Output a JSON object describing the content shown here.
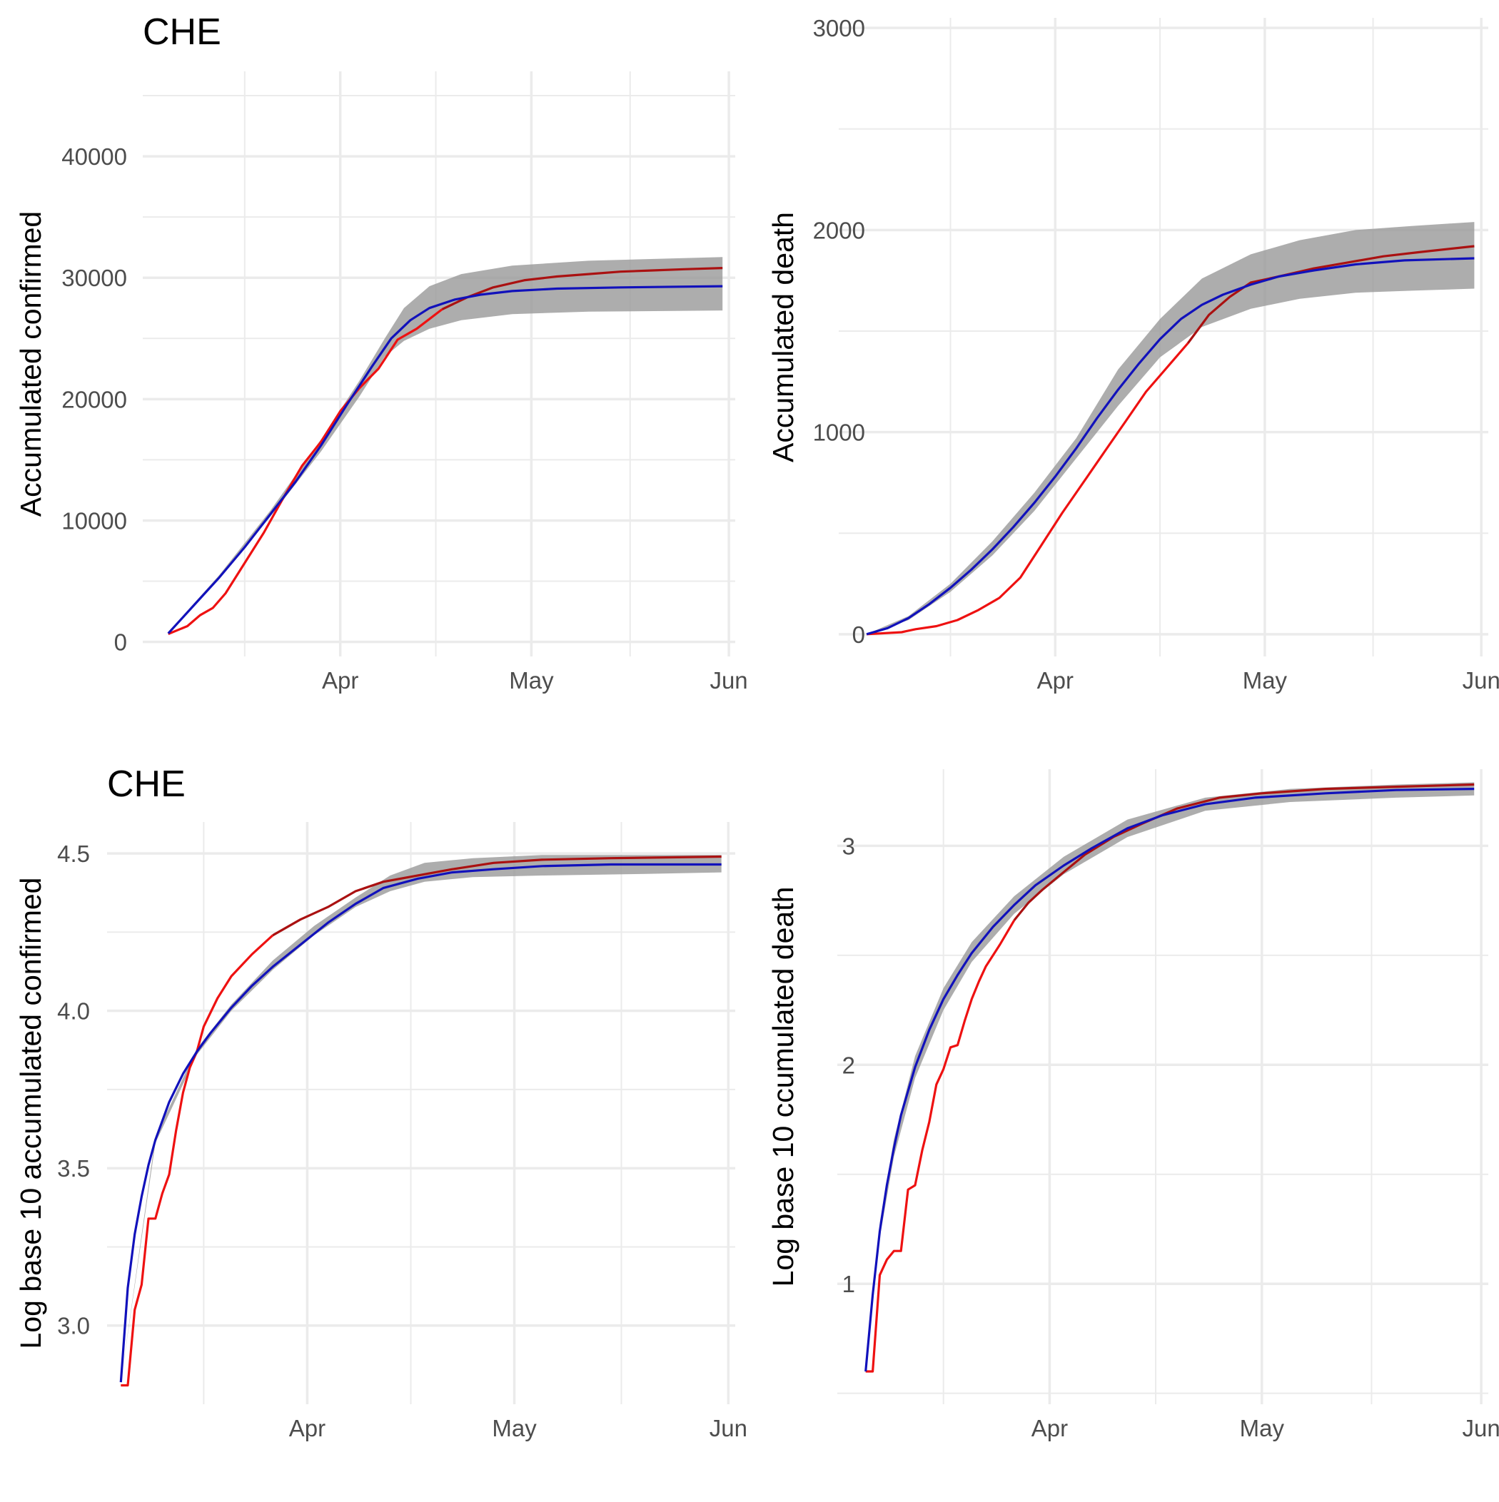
{
  "colors": {
    "observed_early": "#ee1111",
    "observed_late": "#aa1111",
    "fitted": "#1111bb",
    "ribbon": "#999999",
    "grid": "#ebebeb",
    "tick_text": "#4d4d4d",
    "title_text": "#000000"
  },
  "chart_data": [
    {
      "type": "line",
      "title": "CHE",
      "ylabel": "Accumulated confirmed",
      "xlabel": "",
      "x_range": [
        "2020-03-01",
        "2020-06-02"
      ],
      "x_ticks": [
        {
          "date": "2020-04-01",
          "label": "Apr"
        },
        {
          "date": "2020-05-01",
          "label": "May"
        },
        {
          "date": "2020-06-01",
          "label": "Jun"
        }
      ],
      "ylim": [
        -1200,
        47000
      ],
      "y_ticks": [
        {
          "value": 0,
          "label": "0"
        },
        {
          "value": 10000,
          "label": "10000"
        },
        {
          "value": 20000,
          "label": "20000"
        },
        {
          "value": 30000,
          "label": "30000"
        },
        {
          "value": 40000,
          "label": "40000"
        }
      ],
      "grid": true,
      "series": [
        {
          "role": "observed",
          "x": [
            "2020-03-05",
            "2020-03-08",
            "2020-03-10",
            "2020-03-12",
            "2020-03-14",
            "2020-03-17",
            "2020-03-20",
            "2020-03-23",
            "2020-03-26",
            "2020-03-29",
            "2020-04-01",
            "2020-04-04",
            "2020-04-07",
            "2020-04-10",
            "2020-04-13",
            "2020-04-17",
            "2020-04-21",
            "2020-04-25",
            "2020-04-30",
            "2020-05-05",
            "2020-05-10",
            "2020-05-15",
            "2020-05-20",
            "2020-05-25",
            "2020-05-31"
          ],
          "values": [
            650,
            1300,
            2200,
            2800,
            4000,
            6500,
            9000,
            11800,
            14500,
            16500,
            19000,
            20900,
            22500,
            24900,
            25800,
            27400,
            28400,
            29200,
            29800,
            30100,
            30300,
            30500,
            30600,
            30700,
            30800
          ]
        },
        {
          "role": "fitted",
          "x": [
            "2020-03-05",
            "2020-03-09",
            "2020-03-13",
            "2020-03-17",
            "2020-03-21",
            "2020-03-25",
            "2020-03-29",
            "2020-04-02",
            "2020-04-06",
            "2020-04-09",
            "2020-04-12",
            "2020-04-15",
            "2020-04-19",
            "2020-04-23",
            "2020-04-28",
            "2020-05-05",
            "2020-05-15",
            "2020-05-31"
          ],
          "values": [
            700,
            3000,
            5300,
            7800,
            10500,
            13200,
            16200,
            19500,
            22700,
            25000,
            26500,
            27500,
            28200,
            28600,
            28900,
            29100,
            29200,
            29300
          ]
        },
        {
          "role": "ribbon",
          "x": [
            "2020-03-05",
            "2020-03-13",
            "2020-03-21",
            "2020-03-29",
            "2020-04-04",
            "2020-04-08",
            "2020-04-11",
            "2020-04-15",
            "2020-04-20",
            "2020-04-28",
            "2020-05-10",
            "2020-05-31"
          ],
          "lower": [
            700,
            5200,
            10300,
            15700,
            20200,
            23500,
            24800,
            25800,
            26500,
            27000,
            27200,
            27300
          ],
          "upper": [
            800,
            5500,
            10800,
            16700,
            21500,
            25000,
            27500,
            29300,
            30300,
            31000,
            31400,
            31700
          ]
        }
      ]
    },
    {
      "type": "line",
      "title": "",
      "ylabel": "Accumulated death",
      "xlabel": "",
      "x_range": [
        "2020-03-01",
        "2020-06-02"
      ],
      "x_ticks": [
        {
          "date": "2020-04-01",
          "label": "Apr"
        },
        {
          "date": "2020-05-01",
          "label": "May"
        },
        {
          "date": "2020-06-01",
          "label": "Jun"
        }
      ],
      "ylim": [
        -110,
        3050
      ],
      "y_ticks": [
        {
          "value": 0,
          "label": "0"
        },
        {
          "value": 1000,
          "label": "1000"
        },
        {
          "value": 2000,
          "label": "2000"
        },
        {
          "value": 3000,
          "label": "3000"
        }
      ],
      "grid": true,
      "series": [
        {
          "role": "observed",
          "x": [
            "2020-03-05",
            "2020-03-10",
            "2020-03-12",
            "2020-03-15",
            "2020-03-18",
            "2020-03-21",
            "2020-03-24",
            "2020-03-27",
            "2020-03-30",
            "2020-04-02",
            "2020-04-05",
            "2020-04-08",
            "2020-04-11",
            "2020-04-14",
            "2020-04-17",
            "2020-04-20",
            "2020-04-23",
            "2020-04-26",
            "2020-04-29",
            "2020-05-03",
            "2020-05-08",
            "2020-05-13",
            "2020-05-18",
            "2020-05-23",
            "2020-05-31"
          ],
          "values": [
            0,
            10,
            25,
            40,
            70,
            120,
            180,
            280,
            440,
            600,
            750,
            900,
            1050,
            1200,
            1320,
            1440,
            1580,
            1670,
            1740,
            1770,
            1810,
            1840,
            1870,
            1890,
            1920
          ]
        },
        {
          "role": "fitted",
          "x": [
            "2020-03-05",
            "2020-03-08",
            "2020-03-11",
            "2020-03-14",
            "2020-03-17",
            "2020-03-20",
            "2020-03-23",
            "2020-03-26",
            "2020-03-29",
            "2020-04-01",
            "2020-04-04",
            "2020-04-07",
            "2020-04-10",
            "2020-04-13",
            "2020-04-16",
            "2020-04-19",
            "2020-04-22",
            "2020-04-25",
            "2020-04-29",
            "2020-05-03",
            "2020-05-08",
            "2020-05-14",
            "2020-05-21",
            "2020-05-31"
          ],
          "values": [
            0,
            30,
            80,
            150,
            230,
            320,
            420,
            530,
            650,
            780,
            920,
            1070,
            1210,
            1340,
            1460,
            1560,
            1630,
            1680,
            1730,
            1770,
            1800,
            1830,
            1850,
            1860
          ]
        },
        {
          "role": "ribbon",
          "x": [
            "2020-03-05",
            "2020-03-11",
            "2020-03-17",
            "2020-03-23",
            "2020-03-29",
            "2020-04-04",
            "2020-04-10",
            "2020-04-16",
            "2020-04-22",
            "2020-04-29",
            "2020-05-06",
            "2020-05-14",
            "2020-05-22",
            "2020-05-31"
          ],
          "lower": [
            0,
            70,
            210,
            390,
            610,
            870,
            1130,
            1370,
            1520,
            1610,
            1660,
            1690,
            1700,
            1710
          ],
          "upper": [
            0,
            90,
            250,
            460,
            700,
            970,
            1310,
            1560,
            1760,
            1880,
            1950,
            2000,
            2020,
            2040
          ]
        }
      ]
    },
    {
      "type": "line",
      "title": "CHE",
      "ylabel": "Log base 10 accumulated confirmed",
      "xlabel": "",
      "x_range": [
        "2020-03-03",
        "2020-06-02"
      ],
      "x_ticks": [
        {
          "date": "2020-04-01",
          "label": "Apr"
        },
        {
          "date": "2020-05-01",
          "label": "May"
        },
        {
          "date": "2020-06-01",
          "label": "Jun"
        }
      ],
      "ylim": [
        2.75,
        4.6
      ],
      "y_ticks": [
        {
          "value": 3.0,
          "label": "3.0"
        },
        {
          "value": 3.5,
          "label": "3.5"
        },
        {
          "value": 4.0,
          "label": "4.0"
        },
        {
          "value": 4.5,
          "label": "4.5"
        }
      ],
      "grid": true,
      "series": [
        {
          "role": "observed",
          "x": [
            "2020-03-05",
            "2020-03-06",
            "2020-03-07",
            "2020-03-08",
            "2020-03-09",
            "2020-03-10",
            "2020-03-11",
            "2020-03-12",
            "2020-03-13",
            "2020-03-14",
            "2020-03-15",
            "2020-03-16",
            "2020-03-17",
            "2020-03-19",
            "2020-03-21",
            "2020-03-24",
            "2020-03-27",
            "2020-03-31",
            "2020-04-04",
            "2020-04-08",
            "2020-04-12",
            "2020-04-17",
            "2020-04-22",
            "2020-04-28",
            "2020-05-05",
            "2020-05-15",
            "2020-05-31"
          ],
          "values": [
            2.81,
            2.81,
            3.05,
            3.13,
            3.34,
            3.34,
            3.42,
            3.48,
            3.62,
            3.74,
            3.82,
            3.87,
            3.95,
            4.04,
            4.11,
            4.18,
            4.24,
            4.29,
            4.33,
            4.38,
            4.41,
            4.43,
            4.45,
            4.47,
            4.48,
            4.485,
            4.49
          ]
        },
        {
          "role": "fitted",
          "x": [
            "2020-03-05",
            "2020-03-06",
            "2020-03-07",
            "2020-03-08",
            "2020-03-09",
            "2020-03-10",
            "2020-03-12",
            "2020-03-14",
            "2020-03-16",
            "2020-03-18",
            "2020-03-21",
            "2020-03-24",
            "2020-03-27",
            "2020-03-31",
            "2020-04-04",
            "2020-04-08",
            "2020-04-12",
            "2020-04-17",
            "2020-04-22",
            "2020-04-28",
            "2020-05-05",
            "2020-05-15",
            "2020-05-31"
          ],
          "values": [
            2.82,
            3.12,
            3.29,
            3.41,
            3.51,
            3.59,
            3.71,
            3.8,
            3.87,
            3.93,
            4.01,
            4.08,
            4.14,
            4.21,
            4.28,
            4.34,
            4.39,
            4.42,
            4.44,
            4.45,
            4.46,
            4.465,
            4.465
          ]
        },
        {
          "role": "ribbon",
          "x": [
            "2020-03-05",
            "2020-03-10",
            "2020-03-16",
            "2020-03-21",
            "2020-03-27",
            "2020-04-02",
            "2020-04-08",
            "2020-04-13",
            "2020-04-18",
            "2020-04-25",
            "2020-05-05",
            "2020-05-20",
            "2020-05-31"
          ],
          "lower": [
            2.82,
            3.58,
            3.86,
            4.0,
            4.13,
            4.24,
            4.33,
            4.38,
            4.41,
            4.425,
            4.43,
            4.435,
            4.44
          ],
          "upper": [
            2.82,
            3.6,
            3.88,
            4.02,
            4.16,
            4.27,
            4.36,
            4.43,
            4.47,
            4.485,
            4.495,
            4.495,
            4.495
          ]
        }
      ]
    },
    {
      "type": "line",
      "title": "",
      "ylabel": "Log base 10 ccumulated death",
      "xlabel": "",
      "x_range": [
        "2020-03-02",
        "2020-06-02"
      ],
      "x_ticks": [
        {
          "date": "2020-04-01",
          "label": "Apr"
        },
        {
          "date": "2020-05-01",
          "label": "May"
        },
        {
          "date": "2020-06-01",
          "label": "Jun"
        }
      ],
      "ylim": [
        0.45,
        3.35
      ],
      "y_ticks": [
        {
          "value": 1,
          "label": "1"
        },
        {
          "value": 2,
          "label": "2"
        },
        {
          "value": 3,
          "label": "3"
        }
      ],
      "grid": true,
      "series": [
        {
          "role": "observed",
          "x": [
            "2020-03-06",
            "2020-03-07",
            "2020-03-08",
            "2020-03-09",
            "2020-03-10",
            "2020-03-11",
            "2020-03-12",
            "2020-03-13",
            "2020-03-14",
            "2020-03-15",
            "2020-03-16",
            "2020-03-17",
            "2020-03-18",
            "2020-03-19",
            "2020-03-20",
            "2020-03-21",
            "2020-03-22",
            "2020-03-23",
            "2020-03-25",
            "2020-03-27",
            "2020-03-29",
            "2020-03-31",
            "2020-04-03",
            "2020-04-06",
            "2020-04-10",
            "2020-04-14",
            "2020-04-19",
            "2020-04-25",
            "2020-05-01",
            "2020-05-10",
            "2020-05-20",
            "2020-05-31"
          ],
          "values": [
            0.6,
            0.6,
            1.04,
            1.11,
            1.15,
            1.15,
            1.43,
            1.45,
            1.61,
            1.74,
            1.91,
            1.98,
            2.08,
            2.09,
            2.2,
            2.3,
            2.38,
            2.45,
            2.55,
            2.66,
            2.74,
            2.8,
            2.88,
            2.96,
            3.04,
            3.1,
            3.17,
            3.22,
            3.24,
            3.26,
            3.27,
            3.28
          ]
        },
        {
          "role": "fitted",
          "x": [
            "2020-03-06",
            "2020-03-07",
            "2020-03-08",
            "2020-03-09",
            "2020-03-10",
            "2020-03-11",
            "2020-03-13",
            "2020-03-15",
            "2020-03-17",
            "2020-03-19",
            "2020-03-21",
            "2020-03-24",
            "2020-03-27",
            "2020-03-30",
            "2020-04-03",
            "2020-04-07",
            "2020-04-12",
            "2020-04-17",
            "2020-04-23",
            "2020-04-30",
            "2020-05-10",
            "2020-05-20",
            "2020-05-31"
          ],
          "values": [
            0.6,
            0.95,
            1.24,
            1.45,
            1.62,
            1.77,
            1.99,
            2.16,
            2.3,
            2.41,
            2.51,
            2.63,
            2.73,
            2.82,
            2.91,
            2.99,
            3.08,
            3.14,
            3.19,
            3.22,
            3.24,
            3.255,
            3.26
          ]
        },
        {
          "role": "ribbon",
          "x": [
            "2020-03-06",
            "2020-03-08",
            "2020-03-10",
            "2020-03-13",
            "2020-03-17",
            "2020-03-21",
            "2020-03-27",
            "2020-04-03",
            "2020-04-12",
            "2020-04-23",
            "2020-05-05",
            "2020-05-20",
            "2020-05-31"
          ],
          "lower": [
            0.6,
            1.21,
            1.58,
            1.94,
            2.25,
            2.47,
            2.69,
            2.87,
            3.04,
            3.16,
            3.2,
            3.22,
            3.23
          ],
          "upper": [
            0.6,
            1.28,
            1.66,
            2.04,
            2.35,
            2.56,
            2.77,
            2.95,
            3.12,
            3.22,
            3.26,
            3.28,
            3.29
          ]
        }
      ]
    }
  ]
}
